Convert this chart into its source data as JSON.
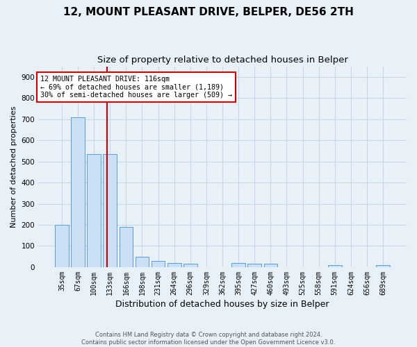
{
  "title": "12, MOUNT PLEASANT DRIVE, BELPER, DE56 2TH",
  "subtitle": "Size of property relative to detached houses in Belper",
  "xlabel": "Distribution of detached houses by size in Belper",
  "ylabel": "Number of detached properties",
  "categories": [
    "35sqm",
    "67sqm",
    "100sqm",
    "133sqm",
    "166sqm",
    "198sqm",
    "231sqm",
    "264sqm",
    "296sqm",
    "329sqm",
    "362sqm",
    "395sqm",
    "427sqm",
    "460sqm",
    "493sqm",
    "525sqm",
    "558sqm",
    "591sqm",
    "624sqm",
    "656sqm",
    "689sqm"
  ],
  "values": [
    200,
    710,
    535,
    535,
    190,
    50,
    30,
    20,
    15,
    0,
    0,
    20,
    15,
    15,
    0,
    0,
    0,
    10,
    0,
    0,
    10
  ],
  "bar_color": "#cce0f5",
  "bar_edgecolor": "#5b9bd5",
  "vline_x": 2.82,
  "vline_color": "#cc0000",
  "annotation_text": "12 MOUNT PLEASANT DRIVE: 116sqm\n← 69% of detached houses are smaller (1,189)\n30% of semi-detached houses are larger (509) →",
  "annotation_box_color": "#ffffff",
  "annotation_box_edgecolor": "#cc0000",
  "footnote": "Contains HM Land Registry data © Crown copyright and database right 2024.\nContains public sector information licensed under the Open Government Licence v3.0.",
  "ylim": [
    0,
    950
  ],
  "yticks": [
    0,
    100,
    200,
    300,
    400,
    500,
    600,
    700,
    800,
    900
  ],
  "background_color": "#e8f0f8",
  "grid_color": "#c8d8e8",
  "title_fontsize": 11,
  "subtitle_fontsize": 9.5,
  "tick_fontsize": 7,
  "ylabel_fontsize": 8,
  "xlabel_fontsize": 9
}
